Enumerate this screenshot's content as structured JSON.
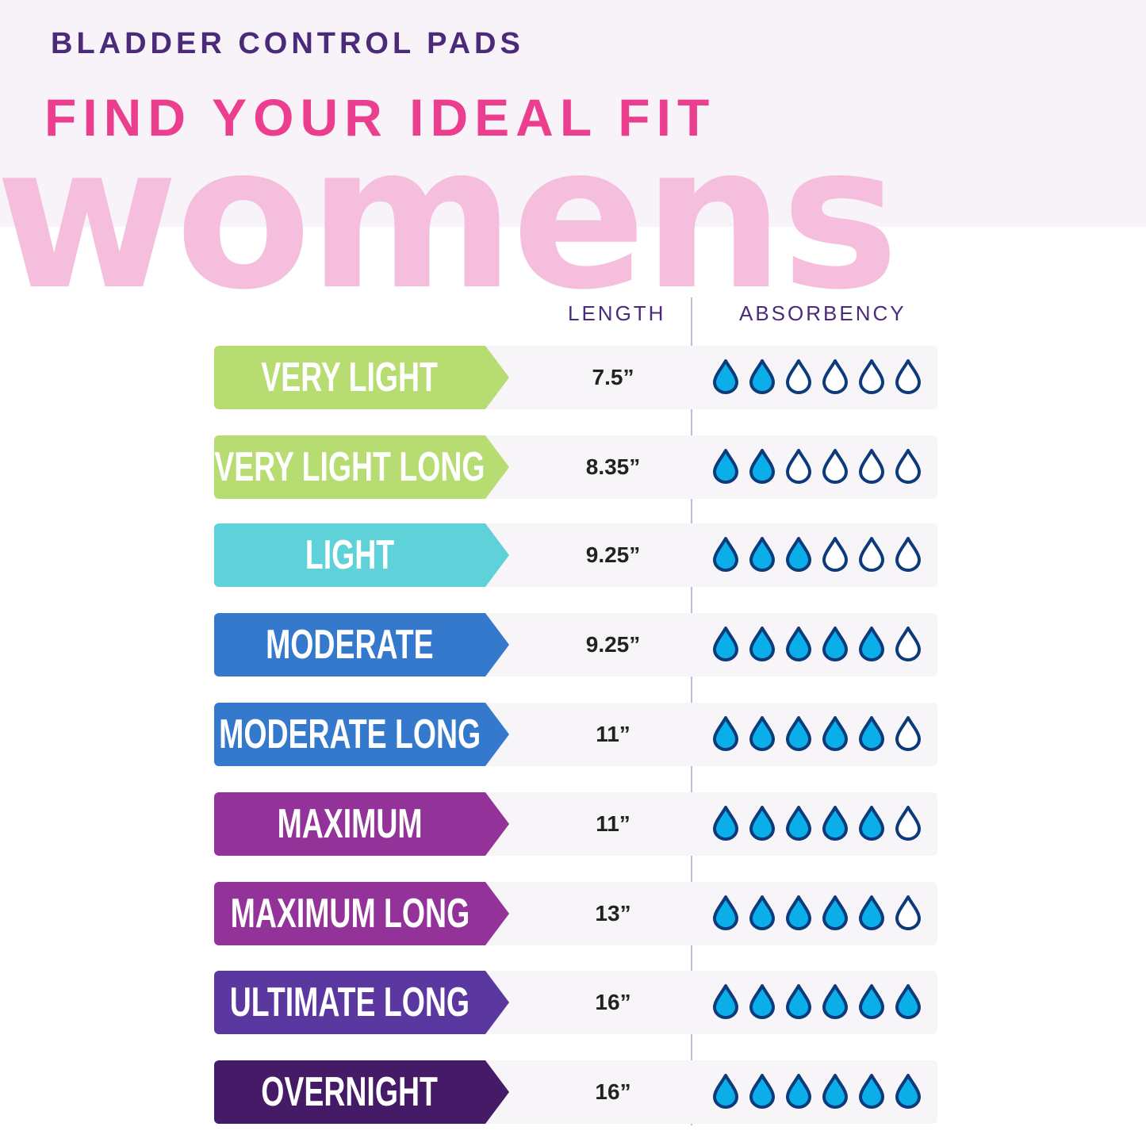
{
  "header": {
    "kicker": "BLADDER CONTROL PADS",
    "title": "FIND YOUR IDEAL FIT",
    "big_word": "womens"
  },
  "columns": {
    "length": "LENGTH",
    "absorbency": "ABSORBENCY"
  },
  "absorbency_max": 6,
  "colors": {
    "drop_fill": "#0aaee8",
    "drop_outline": "#0d3a7a",
    "header_bg": "#f8f2f9",
    "title": "#ec3e8e",
    "big_word": "#f4bedc"
  },
  "rows": [
    {
      "label": "VERY LIGHT",
      "length": "7.5”",
      "absorbency": 2,
      "color": "#b6dc72"
    },
    {
      "label": "VERY LIGHT LONG",
      "length": "8.35”",
      "absorbency": 2,
      "color": "#b6dc72"
    },
    {
      "label": "LIGHT",
      "length": "9.25”",
      "absorbency": 3,
      "color": "#5fd1d9"
    },
    {
      "label": "MODERATE",
      "length": "9.25”",
      "absorbency": 5,
      "color": "#3479cc"
    },
    {
      "label": "MODERATE LONG",
      "length": "11”",
      "absorbency": 5,
      "color": "#3479cc"
    },
    {
      "label": "MAXIMUM",
      "length": "11”",
      "absorbency": 5,
      "color": "#93339a"
    },
    {
      "label": "MAXIMUM LONG",
      "length": "13”",
      "absorbency": 5,
      "color": "#93339a"
    },
    {
      "label": "ULTIMATE LONG",
      "length": "16”",
      "absorbency": 6,
      "color": "#5b37a0"
    },
    {
      "label": "OVERNIGHT",
      "length": "16”",
      "absorbency": 6,
      "color": "#451a66"
    }
  ]
}
